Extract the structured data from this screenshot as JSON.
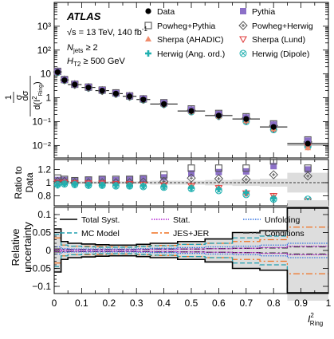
{
  "chart_data": [
    {
      "type": "scatter",
      "panel": "main",
      "ylabel_parts": {
        "frac_num": "1",
        "frac_den": "σ",
        "d_num": "dσ",
        "d_den": "d(I",
        "d_den_sup": "2",
        "d_den_sub": "Ring",
        "d_den_close": ")"
      },
      "yscale": "log",
      "ylim": [
        0.003,
        10000
      ],
      "yticks": [
        "10⁻²",
        "10⁻¹",
        "1",
        "10",
        "10²",
        "10³"
      ],
      "annotations": {
        "experiment": "ATLAS",
        "sqrt_s": "√s = 13 TeV, 140 fb",
        "lumi_sup": "-1",
        "njets": "N",
        "njets_sub": "jets",
        "njets_cut": " ≥ 2",
        "ht": "H",
        "ht_sub": "T2",
        "ht_cut": " ≥ 500 GeV"
      },
      "x": [
        0.0125,
        0.0375,
        0.075,
        0.125,
        0.175,
        0.225,
        0.275,
        0.325,
        0.4,
        0.5,
        0.6,
        0.7,
        0.8,
        0.925
      ],
      "series": [
        {
          "name": "Data",
          "marker": "dot",
          "color": "#000000",
          "values": [
            12,
            5.5,
            3.6,
            2.7,
            2.0,
            1.5,
            1.15,
            0.85,
            0.55,
            0.28,
            0.18,
            0.13,
            0.06,
            0.012
          ]
        },
        {
          "name": "Pythia",
          "marker": "square-filled",
          "color": "#8c70c8",
          "values": [
            12.5,
            5.7,
            3.7,
            2.8,
            2.1,
            1.55,
            1.2,
            0.9,
            0.6,
            0.32,
            0.21,
            0.15,
            0.075,
            0.016
          ]
        },
        {
          "name": "Powheg+Pythia",
          "marker": "square-open",
          "color": "#555555",
          "values": [
            12.8,
            5.8,
            3.7,
            2.8,
            2.1,
            1.6,
            1.2,
            0.9,
            0.62,
            0.34,
            0.22,
            0.16,
            0.08,
            0.017
          ]
        },
        {
          "name": "Powheg+Herwig",
          "marker": "diamond-open",
          "color": "#555555",
          "values": [
            12.2,
            5.6,
            3.6,
            2.7,
            2.0,
            1.5,
            1.15,
            0.86,
            0.56,
            0.3,
            0.19,
            0.14,
            0.068,
            0.014
          ]
        },
        {
          "name": "Sherpa (AHADIC)",
          "marker": "triangle-filled",
          "color": "#f08c6c",
          "values": [
            11.8,
            5.5,
            3.6,
            2.7,
            2.0,
            1.5,
            1.12,
            0.84,
            0.54,
            0.27,
            0.17,
            0.11,
            0.05,
            0.008
          ]
        },
        {
          "name": "Sherpa (Lund)",
          "marker": "triangle-open",
          "color": "#e04040",
          "values": [
            12.0,
            5.5,
            3.5,
            2.7,
            2.0,
            1.5,
            1.12,
            0.83,
            0.53,
            0.27,
            0.17,
            0.11,
            0.05,
            0.009
          ]
        },
        {
          "name": "Herwig (Ang. ord.)",
          "marker": "cross",
          "color": "#20b0b0",
          "values": [
            11.5,
            5.4,
            3.5,
            2.6,
            1.95,
            1.45,
            1.1,
            0.82,
            0.52,
            0.26,
            0.16,
            0.1,
            0.045,
            0.009
          ]
        },
        {
          "name": "Herwig (Dipole)",
          "marker": "circle-x",
          "color": "#20b0b0",
          "values": [
            11.6,
            5.4,
            3.5,
            2.6,
            1.95,
            1.45,
            1.1,
            0.82,
            0.53,
            0.26,
            0.17,
            0.1,
            0.046,
            0.009
          ]
        }
      ]
    },
    {
      "type": "scatter",
      "panel": "ratio",
      "ylabel": [
        "Ratio to",
        "Data"
      ],
      "ylim": [
        0.65,
        1.35
      ],
      "yticks": [
        "0.8",
        "1",
        "1.2"
      ],
      "ytick_values": [
        0.8,
        1.0,
        1.2
      ],
      "x": [
        0.0125,
        0.0375,
        0.075,
        0.125,
        0.175,
        0.225,
        0.275,
        0.325,
        0.4,
        0.5,
        0.6,
        0.7,
        0.8,
        0.925
      ],
      "series": [
        {
          "name": "Pythia",
          "values": [
            1.04,
            1.04,
            1.03,
            1.04,
            1.05,
            1.04,
            1.05,
            1.06,
            1.08,
            1.14,
            1.16,
            1.17,
            1.25,
            1.2
          ]
        },
        {
          "name": "Powheg+Pythia",
          "values": [
            1.07,
            1.05,
            1.03,
            1.04,
            1.05,
            1.05,
            1.05,
            1.06,
            1.12,
            1.22,
            1.22,
            1.22,
            1.33,
            1.22
          ]
        },
        {
          "name": "Powheg+Herwig",
          "values": [
            1.02,
            1.02,
            1.0,
            1.0,
            1.0,
            1.0,
            1.0,
            1.01,
            1.02,
            1.07,
            1.06,
            1.05,
            1.12,
            1.1
          ]
        },
        {
          "name": "Sherpa (AHADIC)",
          "values": [
            0.98,
            1.0,
            1.0,
            0.99,
            0.99,
            0.98,
            0.97,
            0.97,
            0.96,
            0.96,
            0.93,
            0.85,
            0.8,
            0.7
          ]
        },
        {
          "name": "Sherpa (Lund)",
          "values": [
            1.0,
            1.0,
            0.99,
            0.99,
            0.99,
            0.98,
            0.98,
            0.97,
            0.96,
            0.95,
            0.92,
            0.84,
            0.8,
            0.72
          ]
        },
        {
          "name": "Herwig (Ang. ord.)",
          "values": [
            0.96,
            0.98,
            0.97,
            0.96,
            0.96,
            0.96,
            0.95,
            0.95,
            0.94,
            0.92,
            0.9,
            0.85,
            0.76,
            0.72
          ]
        },
        {
          "name": "Herwig (Dipole)",
          "values": [
            0.97,
            0.98,
            0.97,
            0.96,
            0.96,
            0.95,
            0.95,
            0.94,
            0.93,
            0.91,
            0.88,
            0.82,
            0.75,
            0.75
          ]
        }
      ],
      "band_hi": [
        1.03,
        1.02,
        1.02,
        1.02,
        1.02,
        1.02,
        1.02,
        1.02,
        1.03,
        1.03,
        1.04,
        1.05,
        1.06,
        1.15
      ],
      "band_lo": [
        0.97,
        0.98,
        0.98,
        0.98,
        0.98,
        0.98,
        0.98,
        0.98,
        0.97,
        0.97,
        0.96,
        0.95,
        0.94,
        0.85
      ]
    },
    {
      "type": "line",
      "panel": "uncertainty",
      "ylabel": [
        "Relative",
        "uncertainty"
      ],
      "ylim": [
        -0.12,
        0.12
      ],
      "yticks": [
        "−0.1",
        "−0.05",
        "0",
        "0.05",
        "0.1"
      ],
      "ytick_values": [
        -0.1,
        -0.05,
        0,
        0.05,
        0.1
      ],
      "xlabel": "I",
      "xlabel_sup": "2",
      "xlabel_sub": "Ring",
      "xlim": [
        0,
        1
      ],
      "xticks": [
        "0",
        "0.1",
        "0.2",
        "0.3",
        "0.4",
        "0.5",
        "0.6",
        "0.7",
        "0.8",
        "0.9",
        "1"
      ],
      "bin_edges": [
        0,
        0.025,
        0.05,
        0.1,
        0.15,
        0.2,
        0.25,
        0.3,
        0.35,
        0.45,
        0.55,
        0.65,
        0.75,
        0.85,
        1.0
      ],
      "series": [
        {
          "name": "Total Syst.",
          "style": "solid",
          "color": "#000000",
          "values": [
            0.06,
            0.025,
            0.02,
            0.018,
            0.016,
            0.015,
            0.015,
            0.017,
            0.02,
            0.025,
            0.032,
            0.05,
            0.055,
            0.14
          ]
        },
        {
          "name": "Stat.",
          "style": "dotted",
          "color": "#b020d0",
          "values": [
            0.003,
            0.002,
            0.002,
            0.002,
            0.002,
            0.002,
            0.002,
            0.003,
            0.003,
            0.004,
            0.005,
            0.006,
            0.008,
            0.012
          ]
        },
        {
          "name": "Unfolding",
          "style": "dotted",
          "color": "#3070e0",
          "values": [
            0.01,
            0.005,
            0.004,
            0.004,
            0.004,
            0.004,
            0.004,
            0.005,
            0.006,
            0.008,
            0.01,
            0.012,
            0.015,
            0.02
          ]
        },
        {
          "name": "MC Model",
          "style": "dashed",
          "color": "#20a0b0",
          "values": [
            0.045,
            0.015,
            0.012,
            0.01,
            0.009,
            0.009,
            0.009,
            0.011,
            0.013,
            0.017,
            0.02,
            0.035,
            0.04,
            0.12
          ]
        },
        {
          "name": "JES+JER",
          "style": "dashdot",
          "color": "#f07020",
          "values": [
            0.035,
            0.015,
            0.012,
            0.012,
            0.011,
            0.01,
            0.01,
            0.012,
            0.014,
            0.017,
            0.02,
            0.025,
            0.03,
            0.065
          ]
        },
        {
          "name": "Conditions",
          "style": "dashdot",
          "color": "#333333",
          "values": [
            0.004,
            0.003,
            0.003,
            0.003,
            0.003,
            0.003,
            0.003,
            0.003,
            0.004,
            0.004,
            0.005,
            0.006,
            0.007,
            0.01
          ]
        }
      ]
    }
  ]
}
